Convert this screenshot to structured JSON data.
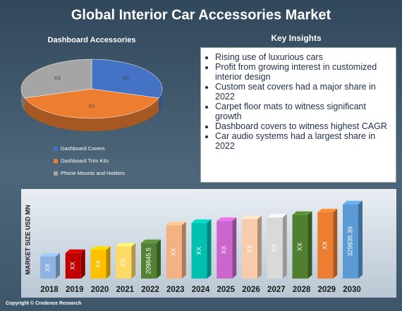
{
  "title": "Global Interior Car Accessories Market",
  "chart_data": [
    {
      "type": "pie",
      "title": "Dashboard Accessories",
      "categories": [
        "Dashboard Covers",
        "Dashboard Trim Kits",
        "Phone Mounts and Holders"
      ],
      "values": [
        30,
        40,
        30
      ],
      "value_labels": [
        "XX",
        "XX",
        "XX"
      ],
      "colors": [
        "#4472c4",
        "#ed7d31",
        "#a5a5a5"
      ]
    },
    {
      "type": "bar",
      "y_label": "MARKET SIZE USD MN",
      "categories": [
        "2018",
        "2019",
        "2020",
        "2021",
        "2022",
        "2023",
        "2024",
        "2025",
        "2026",
        "2027",
        "2028",
        "2029",
        "2030"
      ],
      "values": [
        168000,
        179000,
        189000,
        199000,
        209845.5,
        265000,
        272000,
        278000,
        284000,
        289000,
        297000,
        305000,
        329835.39
      ],
      "value_labels": [
        "XX",
        "XX",
        "XX",
        "XX",
        "209845.5",
        "XX",
        "XX",
        "XX",
        "XX",
        "XX",
        "XX",
        "XX",
        "329835.39"
      ],
      "colors": [
        "#8db3e2",
        "#c00000",
        "#ffc000",
        "#ffd966",
        "#548235",
        "#f4b183",
        "#00c0b0",
        "#cc66cc",
        "#f8cbad",
        "#d9d9d9",
        "#4f7f2f",
        "#ed7d31",
        "#5b9bd5"
      ],
      "ylim": [
        100000,
        340000
      ]
    }
  ],
  "key_insights": {
    "title": "Key Insights",
    "items": [
      "Rising use of luxurious cars",
      "Profit from growing interest in customized interior design",
      "Custom seat covers had a major share in 2022",
      "Carpet floor mats to witness significant growth",
      "Dashboard covers to witness highest CAGR",
      "Car audio systems had a largest share in 2022"
    ]
  },
  "copyright": "Copyright © Credence Research"
}
